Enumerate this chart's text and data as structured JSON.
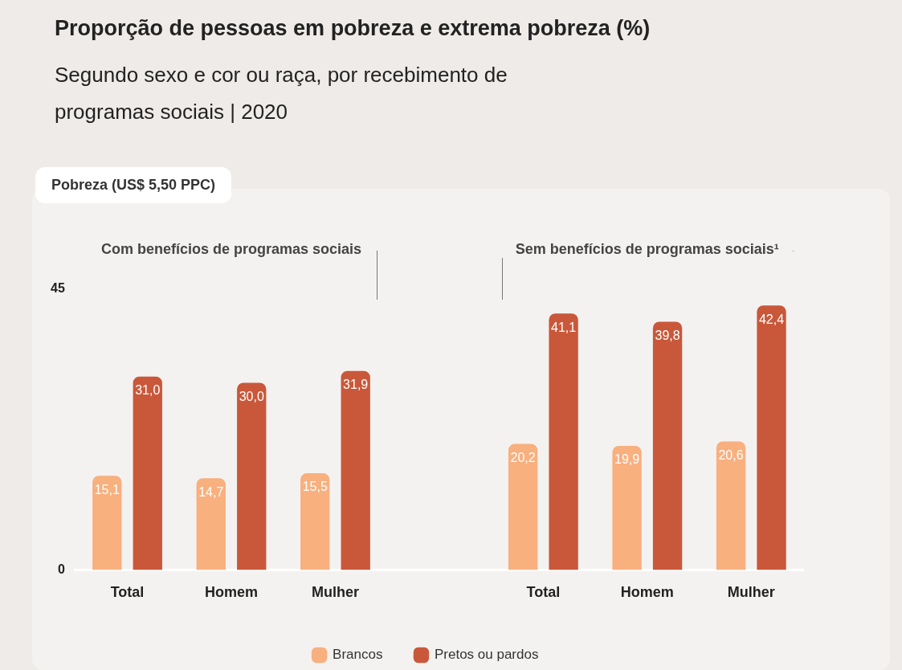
{
  "chart_data": {
    "type": "bar",
    "title": "Proporção de pessoas em pobreza e extrema pobreza (%)",
    "subtitle": "Segundo sexo e cor ou raça, por recebimento de programas sociais | 2020",
    "annotations": [
      "Pobreza (US$ 5,50 PPC)",
      "Com benefícios de programas sociais",
      "Sem benefícios de programas sociais¹"
    ],
    "categories": [
      "Total",
      "Homem",
      "Mulher",
      null,
      "Total",
      "Homem",
      "Mulher"
    ],
    "series": [
      {
        "name": "Brancos",
        "color": "#f8b07f",
        "values": [
          15.1,
          14.7,
          15.5,
          null,
          20.2,
          19.9,
          20.6
        ],
        "value_labels": [
          "15,1",
          "14,7",
          "15,5",
          null,
          "20,2",
          "19,9",
          "20,6"
        ]
      },
      {
        "name": "Pretos ou pardos",
        "color": "#c9583a",
        "values": [
          31.0,
          30.0,
          31.9,
          null,
          41.1,
          39.8,
          42.4
        ],
        "value_labels": [
          "31,0",
          "30,0",
          "31,9",
          null,
          "41,1",
          "39,8",
          "42,4"
        ]
      }
    ],
    "ylim": [
      0,
      45
    ],
    "yticks": [
      0,
      45
    ],
    "grid": false,
    "legend": "bottom"
  }
}
